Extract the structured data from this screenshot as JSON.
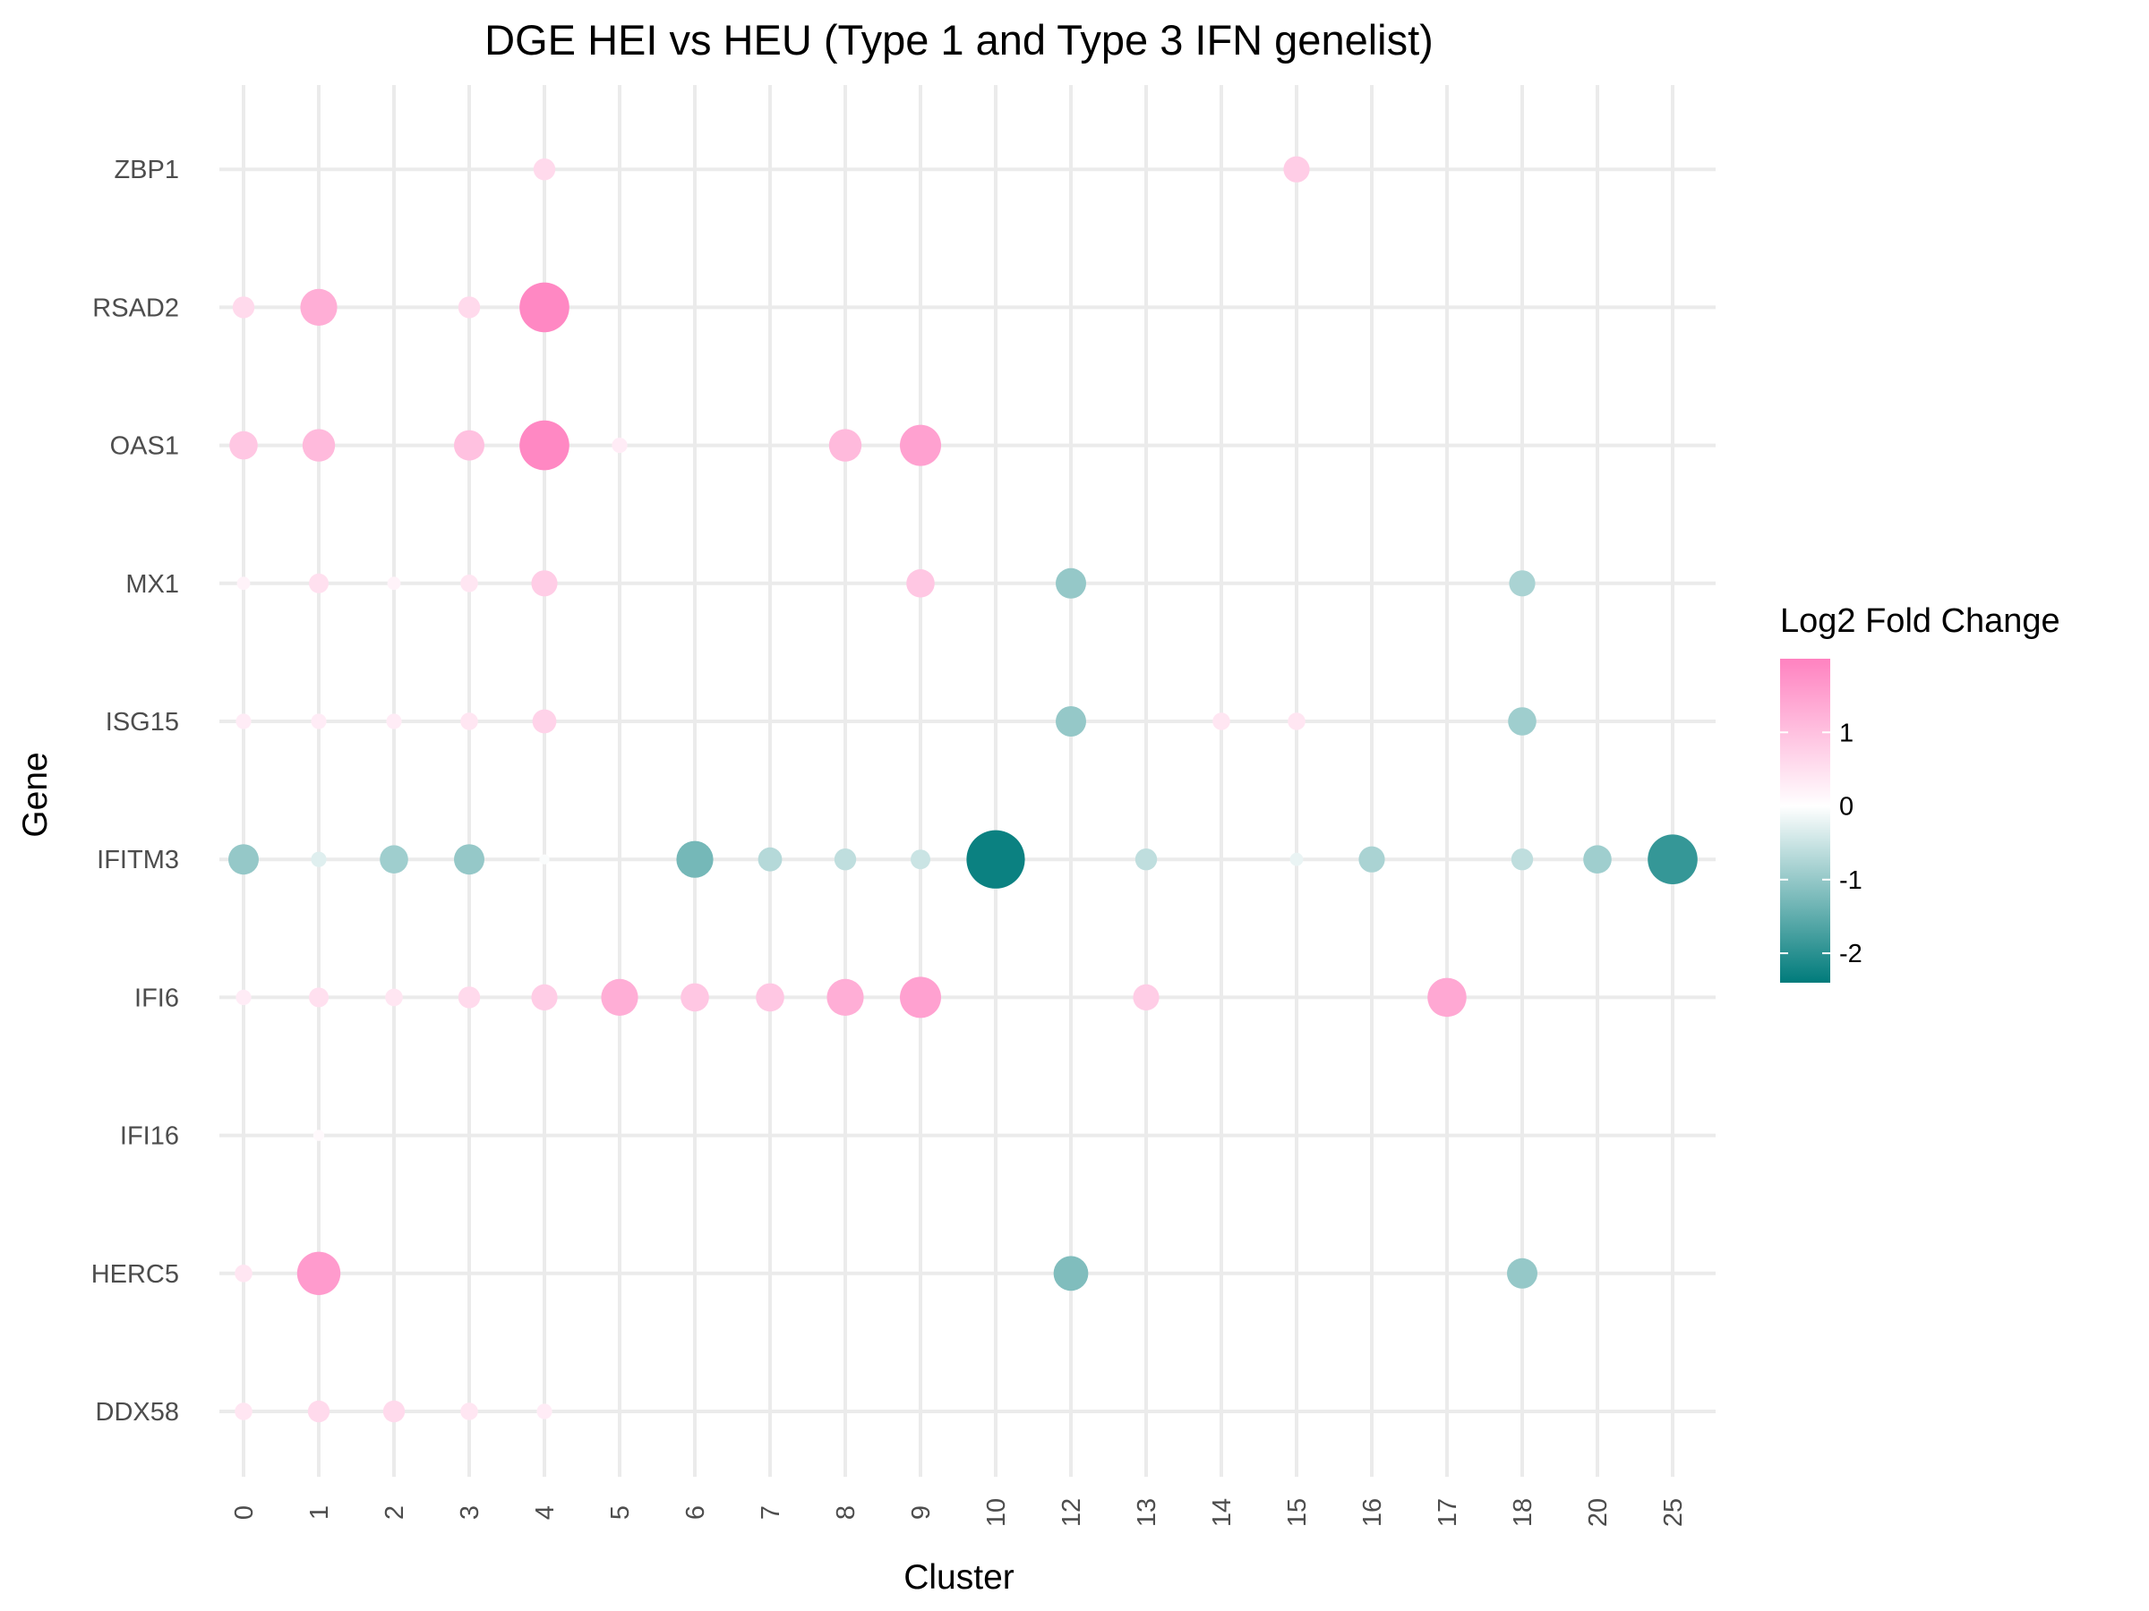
{
  "chart_data": {
    "type": "scatter",
    "title": "DGE HEI vs HEU (Type 1 and Type 3 IFN genelist)",
    "xlabel": "Cluster",
    "ylabel": "Gene",
    "x_categories": [
      "0",
      "1",
      "2",
      "3",
      "4",
      "5",
      "6",
      "7",
      "8",
      "9",
      "10",
      "12",
      "13",
      "14",
      "15",
      "16",
      "17",
      "18",
      "20",
      "25"
    ],
    "y_categories": [
      "DDX58",
      "HERC5",
      "IFI16",
      "IFI6",
      "IFITM3",
      "ISG15",
      "MX1",
      "OAS1",
      "RSAD2",
      "ZBP1"
    ],
    "grid": true,
    "legend": {
      "title": "Log2 Fold Change",
      "position": "right",
      "ticks": [
        1,
        0,
        -1,
        -2
      ],
      "range": [
        -2.4,
        2.0
      ],
      "colors": {
        "high": "#ff82c0",
        "mid": "#ffffff",
        "low": "#007b7b"
      }
    },
    "points": [
      {
        "gene": "ZBP1",
        "cluster": "4",
        "value": 0.6
      },
      {
        "gene": "ZBP1",
        "cluster": "15",
        "value": 0.8
      },
      {
        "gene": "RSAD2",
        "cluster": "0",
        "value": 0.6
      },
      {
        "gene": "RSAD2",
        "cluster": "1",
        "value": 1.3
      },
      {
        "gene": "RSAD2",
        "cluster": "3",
        "value": 0.6
      },
      {
        "gene": "RSAD2",
        "cluster": "4",
        "value": 1.9
      },
      {
        "gene": "OAS1",
        "cluster": "0",
        "value": 0.9
      },
      {
        "gene": "OAS1",
        "cluster": "1",
        "value": 1.1
      },
      {
        "gene": "OAS1",
        "cluster": "3",
        "value": 1.0
      },
      {
        "gene": "OAS1",
        "cluster": "4",
        "value": 1.9
      },
      {
        "gene": "OAS1",
        "cluster": "5",
        "value": 0.3
      },
      {
        "gene": "OAS1",
        "cluster": "8",
        "value": 1.1
      },
      {
        "gene": "OAS1",
        "cluster": "9",
        "value": 1.5
      },
      {
        "gene": "MX1",
        "cluster": "0",
        "value": 0.2
      },
      {
        "gene": "MX1",
        "cluster": "1",
        "value": 0.5
      },
      {
        "gene": "MX1",
        "cluster": "2",
        "value": 0.2
      },
      {
        "gene": "MX1",
        "cluster": "3",
        "value": 0.4
      },
      {
        "gene": "MX1",
        "cluster": "4",
        "value": 0.8
      },
      {
        "gene": "MX1",
        "cluster": "9",
        "value": 0.9
      },
      {
        "gene": "MX1",
        "cluster": "12",
        "value": -1.0
      },
      {
        "gene": "MX1",
        "cluster": "18",
        "value": -0.8
      },
      {
        "gene": "ISG15",
        "cluster": "0",
        "value": 0.3
      },
      {
        "gene": "ISG15",
        "cluster": "1",
        "value": 0.3
      },
      {
        "gene": "ISG15",
        "cluster": "2",
        "value": 0.3
      },
      {
        "gene": "ISG15",
        "cluster": "3",
        "value": 0.4
      },
      {
        "gene": "ISG15",
        "cluster": "4",
        "value": 0.7
      },
      {
        "gene": "ISG15",
        "cluster": "12",
        "value": -1.0
      },
      {
        "gene": "ISG15",
        "cluster": "14",
        "value": 0.4
      },
      {
        "gene": "ISG15",
        "cluster": "15",
        "value": 0.4
      },
      {
        "gene": "ISG15",
        "cluster": "18",
        "value": -0.9
      },
      {
        "gene": "IFITM3",
        "cluster": "0",
        "value": -1.0
      },
      {
        "gene": "IFITM3",
        "cluster": "1",
        "value": -0.3
      },
      {
        "gene": "IFITM3",
        "cluster": "2",
        "value": -0.9
      },
      {
        "gene": "IFITM3",
        "cluster": "3",
        "value": -1.0
      },
      {
        "gene": "IFITM3",
        "cluster": "4",
        "value": -0.05
      },
      {
        "gene": "IFITM3",
        "cluster": "6",
        "value": -1.3
      },
      {
        "gene": "IFITM3",
        "cluster": "7",
        "value": -0.7
      },
      {
        "gene": "IFITM3",
        "cluster": "8",
        "value": -0.6
      },
      {
        "gene": "IFITM3",
        "cluster": "9",
        "value": -0.5
      },
      {
        "gene": "IFITM3",
        "cluster": "10",
        "value": -2.3
      },
      {
        "gene": "IFITM3",
        "cluster": "13",
        "value": -0.6
      },
      {
        "gene": "IFITM3",
        "cluster": "15",
        "value": -0.2
      },
      {
        "gene": "IFITM3",
        "cluster": "16",
        "value": -0.8
      },
      {
        "gene": "IFITM3",
        "cluster": "18",
        "value": -0.6
      },
      {
        "gene": "IFITM3",
        "cluster": "20",
        "value": -0.9
      },
      {
        "gene": "IFITM3",
        "cluster": "25",
        "value": -1.9
      },
      {
        "gene": "IFI6",
        "cluster": "0",
        "value": 0.3
      },
      {
        "gene": "IFI6",
        "cluster": "1",
        "value": 0.5
      },
      {
        "gene": "IFI6",
        "cluster": "2",
        "value": 0.4
      },
      {
        "gene": "IFI6",
        "cluster": "3",
        "value": 0.6
      },
      {
        "gene": "IFI6",
        "cluster": "4",
        "value": 0.8
      },
      {
        "gene": "IFI6",
        "cluster": "5",
        "value": 1.3
      },
      {
        "gene": "IFI6",
        "cluster": "6",
        "value": 0.9
      },
      {
        "gene": "IFI6",
        "cluster": "7",
        "value": 0.9
      },
      {
        "gene": "IFI6",
        "cluster": "8",
        "value": 1.3
      },
      {
        "gene": "IFI6",
        "cluster": "9",
        "value": 1.5
      },
      {
        "gene": "IFI6",
        "cluster": "13",
        "value": 0.8
      },
      {
        "gene": "IFI6",
        "cluster": "17",
        "value": 1.4
      },
      {
        "gene": "IFI16",
        "cluster": "1",
        "value": 0.1
      },
      {
        "gene": "HERC5",
        "cluster": "0",
        "value": 0.4
      },
      {
        "gene": "HERC5",
        "cluster": "1",
        "value": 1.6
      },
      {
        "gene": "HERC5",
        "cluster": "12",
        "value": -1.2
      },
      {
        "gene": "HERC5",
        "cluster": "18",
        "value": -1.0
      },
      {
        "gene": "DDX58",
        "cluster": "0",
        "value": 0.4
      },
      {
        "gene": "DDX58",
        "cluster": "1",
        "value": 0.6
      },
      {
        "gene": "DDX58",
        "cluster": "2",
        "value": 0.6
      },
      {
        "gene": "DDX58",
        "cluster": "3",
        "value": 0.4
      },
      {
        "gene": "DDX58",
        "cluster": "4",
        "value": 0.3
      }
    ]
  }
}
